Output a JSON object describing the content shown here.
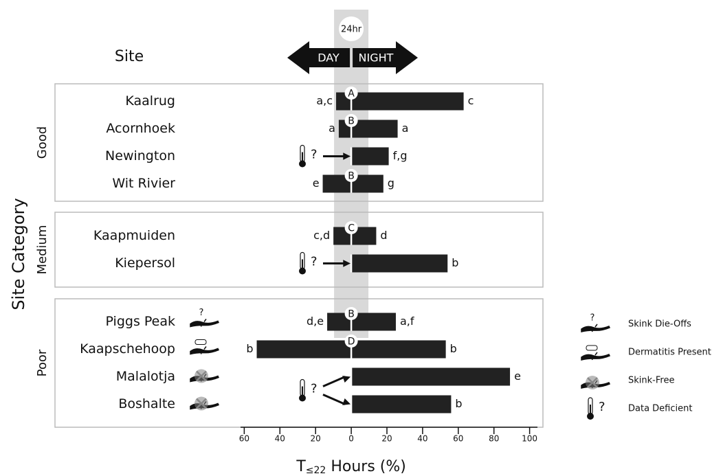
{
  "chart_data": {
    "type": "diverging_bar",
    "category_header": "Site",
    "y_label": "Site Category",
    "x_label": {
      "main": "T",
      "subscript": "≤22",
      "rest": " Hours (%)"
    },
    "center_label": "24hr",
    "day_label": "DAY",
    "night_label": "NIGHT",
    "color": "#222222",
    "band_color": "#d9d9d9",
    "uncertain_mark": "?",
    "xlim": [
      -64,
      104
    ],
    "xticks": [
      {
        "value": -60,
        "label": "60"
      },
      {
        "value": -40,
        "label": "40"
      },
      {
        "value": -20,
        "label": "20"
      },
      0,
      20,
      40,
      60,
      80,
      100
    ],
    "groups": [
      {
        "name": "Good",
        "categories": [
          "Kaalrug",
          "Acornhoek",
          "Newington",
          "Wit Rivier"
        ],
        "day": [
          -8.5,
          -7,
          null,
          -16
        ],
        "night": [
          63,
          26,
          21,
          18
        ],
        "day_letters": [
          "a,c",
          "a",
          null,
          "e"
        ],
        "night_letters": [
          "c",
          "a",
          "f,g",
          "g"
        ],
        "center_letters": [
          "A",
          "B",
          null,
          "B"
        ],
        "icons": [
          null,
          null,
          null,
          null
        ]
      },
      {
        "name": "Medium",
        "categories": [
          "Kaapmuiden",
          "Kiepersol"
        ],
        "day": [
          -10,
          null
        ],
        "night": [
          14,
          54
        ],
        "day_letters": [
          "c,d",
          null
        ],
        "night_letters": [
          "d",
          "b"
        ],
        "center_letters": [
          "C",
          null
        ],
        "icons": [
          null,
          null
        ]
      },
      {
        "name": "Poor",
        "categories": [
          "Piggs Peak",
          "Kaapschehoop",
          "Malalotja",
          "Boshalte"
        ],
        "day": [
          -13.5,
          -53,
          null,
          null
        ],
        "night": [
          25,
          53,
          89,
          56
        ],
        "day_letters": [
          "d,e",
          "b",
          null,
          null
        ],
        "night_letters": [
          "a,f",
          "b",
          "e",
          "b"
        ],
        "center_letters": [
          "B",
          "D",
          null,
          null
        ],
        "icons": [
          "die_off",
          "dermatitis",
          "skink_free",
          "skink_free"
        ]
      }
    ],
    "legend": [
      {
        "key": "die_off",
        "label": "Skink Die-Offs"
      },
      {
        "key": "dermatitis",
        "label": "Dermatitis Present"
      },
      {
        "key": "skink_free",
        "label": "Skink-Free"
      },
      {
        "key": "data_deficient",
        "label": "Data Deficient"
      }
    ]
  }
}
